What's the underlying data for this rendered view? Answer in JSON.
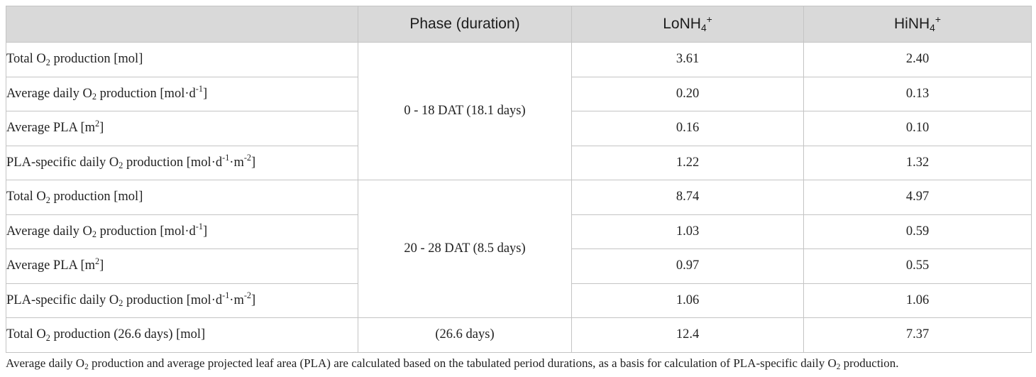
{
  "header": {
    "col1": "",
    "col2": "Phase (duration)",
    "col3": "LoNH4+",
    "col4": "HiNH4+"
  },
  "phases": [
    {
      "label": "0 - 18 DAT (18.1 days)",
      "rows": [
        {
          "label": "Total O2 production [mol]",
          "lo": "3.61",
          "hi": "2.40"
        },
        {
          "label": "Average daily O2 production [mol·d-1]",
          "lo": "0.20",
          "hi": "0.13"
        },
        {
          "label": "Average PLA [m2]",
          "lo": "0.16",
          "hi": "0.10"
        },
        {
          "label": "PLA-specific daily O2 production [mol·d-1·m-2]",
          "lo": "1.22",
          "hi": "1.32"
        }
      ]
    },
    {
      "label": "20 - 28 DAT (8.5 days)",
      "rows": [
        {
          "label": "Total O2 production [mol]",
          "lo": "8.74",
          "hi": "4.97"
        },
        {
          "label": "Average daily O2 production [mol·d-1]",
          "lo": "1.03",
          "hi": "0.59"
        },
        {
          "label": "Average PLA [m2]",
          "lo": "0.97",
          "hi": "0.55"
        },
        {
          "label": "PLA-specific daily O2 production [mol·d-1·m-2]",
          "lo": "1.06",
          "hi": "1.06"
        }
      ]
    }
  ],
  "total": {
    "label": "Total O2 production (26.6 days) [mol]",
    "phase": "(26.6 days)",
    "lo": "12.4",
    "hi": "7.37"
  },
  "caption": "Average daily O2 production and average projected leaf area (PLA) are calculated based on the tabulated period durations, as a basis for calculation of PLA-specific daily O2 production."
}
